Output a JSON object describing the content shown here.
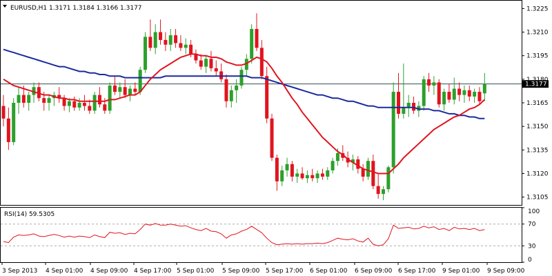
{
  "main_title": "EURUSD,H1  1.3171 1.3184 1.3166 1.3177",
  "rsi_title": "RSI(14) 59.5305",
  "current_price_label": "1.3177",
  "colors": {
    "bull": "#2ca02c",
    "bear": "#e0141e",
    "ma_fast": "#e0141e",
    "ma_slow": "#1a2a9c",
    "rsi": "#e0141e",
    "price_line": "#2f4f4f",
    "badge_bg": "#000000",
    "frame": "#000000",
    "level_line": "#aaaaaa"
  },
  "chart_data": [
    {
      "type": "candlestick",
      "title": "EURUSD,H1  1.3171 1.3184 1.3166 1.3177",
      "ylim": [
        1.31,
        1.323
      ],
      "y_ticks": [
        "1.3225",
        "1.3210",
        "1.3195",
        "1.3180",
        "1.3165",
        "1.3150",
        "1.3135",
        "1.3120",
        "1.3105"
      ],
      "last_price": 1.3177,
      "candles": [
        [
          1.3163,
          1.317,
          1.315,
          1.3155
        ],
        [
          1.3155,
          1.3162,
          1.3135,
          1.314
        ],
        [
          1.314,
          1.3168,
          1.3138,
          1.3165
        ],
        [
          1.3165,
          1.3175,
          1.3158,
          1.317
        ],
        [
          1.317,
          1.3176,
          1.3162,
          1.3165
        ],
        [
          1.3165,
          1.3172,
          1.316,
          1.317
        ],
        [
          1.317,
          1.3178,
          1.3165,
          1.3175
        ],
        [
          1.3175,
          1.3178,
          1.3166,
          1.3168
        ],
        [
          1.3168,
          1.3172,
          1.316,
          1.3165
        ],
        [
          1.3165,
          1.317,
          1.316,
          1.3168
        ],
        [
          1.3168,
          1.3172,
          1.3163,
          1.317
        ],
        [
          1.317,
          1.3175,
          1.3165,
          1.3168
        ],
        [
          1.3168,
          1.317,
          1.316,
          1.3163
        ],
        [
          1.3163,
          1.3168,
          1.3159,
          1.3166
        ],
        [
          1.3166,
          1.3169,
          1.316,
          1.3162
        ],
        [
          1.3162,
          1.3168,
          1.316,
          1.3165
        ],
        [
          1.3165,
          1.317,
          1.316,
          1.3163
        ],
        [
          1.3163,
          1.3167,
          1.3158,
          1.316
        ],
        [
          1.316,
          1.3172,
          1.3158,
          1.317
        ],
        [
          1.317,
          1.3175,
          1.3162,
          1.3164
        ],
        [
          1.3164,
          1.3168,
          1.3158,
          1.316
        ],
        [
          1.316,
          1.3178,
          1.3158,
          1.3176
        ],
        [
          1.3176,
          1.3182,
          1.317,
          1.3172
        ],
        [
          1.3172,
          1.3178,
          1.3168,
          1.3175
        ],
        [
          1.3175,
          1.318,
          1.3168,
          1.317
        ],
        [
          1.317,
          1.3176,
          1.3166,
          1.3174
        ],
        [
          1.3174,
          1.3178,
          1.317,
          1.3172
        ],
        [
          1.3172,
          1.3188,
          1.317,
          1.3186
        ],
        [
          1.3186,
          1.321,
          1.3184,
          1.3207
        ],
        [
          1.3207,
          1.3218,
          1.3198,
          1.32
        ],
        [
          1.32,
          1.3215,
          1.3196,
          1.321
        ],
        [
          1.321,
          1.3218,
          1.3202,
          1.3205
        ],
        [
          1.3205,
          1.321,
          1.3198,
          1.3202
        ],
        [
          1.3202,
          1.3212,
          1.3198,
          1.3208
        ],
        [
          1.3208,
          1.3212,
          1.32,
          1.3203
        ],
        [
          1.3203,
          1.3208,
          1.3198,
          1.32
        ],
        [
          1.32,
          1.3206,
          1.3196,
          1.3202
        ],
        [
          1.3202,
          1.3205,
          1.3194,
          1.3196
        ],
        [
          1.3196,
          1.3199,
          1.319,
          1.3192
        ],
        [
          1.3192,
          1.3196,
          1.3186,
          1.3188
        ],
        [
          1.3188,
          1.3195,
          1.3184,
          1.3193
        ],
        [
          1.3193,
          1.3198,
          1.3185,
          1.3187
        ],
        [
          1.3187,
          1.3192,
          1.3182,
          1.3185
        ],
        [
          1.3185,
          1.319,
          1.3178,
          1.318
        ],
        [
          1.318,
          1.3183,
          1.3162,
          1.3166
        ],
        [
          1.3166,
          1.3176,
          1.3162,
          1.3173
        ],
        [
          1.3173,
          1.318,
          1.3165,
          1.3176
        ],
        [
          1.3176,
          1.3188,
          1.3174,
          1.3186
        ],
        [
          1.3186,
          1.3196,
          1.3182,
          1.3193
        ],
        [
          1.3193,
          1.3215,
          1.319,
          1.3212
        ],
        [
          1.3212,
          1.3222,
          1.3198,
          1.32
        ],
        [
          1.32,
          1.3205,
          1.318,
          1.3182
        ],
        [
          1.3182,
          1.3188,
          1.3152,
          1.3155
        ],
        [
          1.3155,
          1.3158,
          1.3128,
          1.313
        ],
        [
          1.313,
          1.3132,
          1.3109,
          1.3115
        ],
        [
          1.3115,
          1.3125,
          1.3112,
          1.3122
        ],
        [
          1.3122,
          1.313,
          1.3118,
          1.3126
        ],
        [
          1.3126,
          1.3128,
          1.3115,
          1.3118
        ],
        [
          1.3118,
          1.3123,
          1.3114,
          1.312
        ],
        [
          1.312,
          1.3124,
          1.3116,
          1.3117
        ],
        [
          1.3117,
          1.3122,
          1.3114,
          1.3119
        ],
        [
          1.3119,
          1.3123,
          1.3115,
          1.3117
        ],
        [
          1.3117,
          1.3122,
          1.3114,
          1.312
        ],
        [
          1.312,
          1.3123,
          1.3116,
          1.3118
        ],
        [
          1.3118,
          1.3124,
          1.3116,
          1.3122
        ],
        [
          1.3122,
          1.313,
          1.312,
          1.3128
        ],
        [
          1.3128,
          1.3136,
          1.3125,
          1.3133
        ],
        [
          1.3133,
          1.3138,
          1.3128,
          1.313
        ],
        [
          1.313,
          1.3134,
          1.3124,
          1.3127
        ],
        [
          1.3127,
          1.3132,
          1.3122,
          1.3129
        ],
        [
          1.3129,
          1.3131,
          1.312,
          1.3123
        ],
        [
          1.3123,
          1.3126,
          1.3115,
          1.3118
        ],
        [
          1.3118,
          1.313,
          1.3116,
          1.3128
        ],
        [
          1.3128,
          1.3132,
          1.311,
          1.3112
        ],
        [
          1.3112,
          1.312,
          1.3104,
          1.3107
        ],
        [
          1.3107,
          1.3112,
          1.3103,
          1.311
        ],
        [
          1.311,
          1.3125,
          1.3108,
          1.3124
        ],
        [
          1.3124,
          1.3178,
          1.312,
          1.3172
        ],
        [
          1.3172,
          1.3184,
          1.3155,
          1.3158
        ],
        [
          1.3158,
          1.319,
          1.3155,
          1.3162
        ],
        [
          1.3162,
          1.317,
          1.3156,
          1.3165
        ],
        [
          1.3165,
          1.3169,
          1.3158,
          1.316
        ],
        [
          1.316,
          1.3166,
          1.3156,
          1.3163
        ],
        [
          1.3163,
          1.3182,
          1.316,
          1.318
        ],
        [
          1.318,
          1.3184,
          1.3172,
          1.3176
        ],
        [
          1.3176,
          1.3182,
          1.317,
          1.3178
        ],
        [
          1.3178,
          1.318,
          1.3162,
          1.3164
        ],
        [
          1.3164,
          1.3174,
          1.316,
          1.3172
        ],
        [
          1.3172,
          1.3177,
          1.3165,
          1.3167
        ],
        [
          1.3167,
          1.3181,
          1.3164,
          1.3174
        ],
        [
          1.3174,
          1.3178,
          1.3166,
          1.317
        ],
        [
          1.317,
          1.3176,
          1.3165,
          1.3173
        ],
        [
          1.3173,
          1.3176,
          1.3166,
          1.3169
        ],
        [
          1.3169,
          1.3174,
          1.3165,
          1.3172
        ],
        [
          1.3172,
          1.3175,
          1.3164,
          1.3166
        ],
        [
          1.3171,
          1.3184,
          1.3166,
          1.3177
        ]
      ],
      "series": [
        {
          "values": [
            1.318,
            1.3178,
            1.3176,
            1.3175,
            1.3174,
            1.3173,
            1.3172,
            1.3171,
            1.317,
            1.317,
            1.3169,
            1.3168,
            1.3168,
            1.3167,
            1.3167,
            1.3166,
            1.3166,
            1.3166,
            1.3166,
            1.3166,
            1.3166,
            1.3167,
            1.3167,
            1.3168,
            1.3169,
            1.317,
            1.317,
            1.3172,
            1.3176,
            1.318,
            1.3183,
            1.3186,
            1.3188,
            1.319,
            1.3192,
            1.3194,
            1.3195,
            1.3196,
            1.3196,
            1.3195,
            1.3195,
            1.3194,
            1.3194,
            1.3193,
            1.3191,
            1.319,
            1.3189,
            1.3189,
            1.319,
            1.3192,
            1.3194,
            1.3193,
            1.3191,
            1.3187,
            1.3182,
            1.3178,
            1.3173,
            1.3168,
            1.3164,
            1.3159,
            1.3155,
            1.3151,
            1.3147,
            1.3143,
            1.314,
            1.3137,
            1.3134,
            1.3132,
            1.3129,
            1.3127,
            1.3125,
            1.3123,
            1.3122,
            1.3121,
            1.312,
            1.312,
            1.312,
            1.3123,
            1.3126,
            1.313,
            1.3133,
            1.3136,
            1.3139,
            1.3142,
            1.3145,
            1.3148,
            1.315,
            1.3152,
            1.3154,
            1.3156,
            1.3157,
            1.3159,
            1.3161,
            1.3162,
            1.3164,
            1.3167
          ]
        },
        {
          "values": [
            1.3199,
            1.3198,
            1.3197,
            1.3196,
            1.3195,
            1.3194,
            1.3193,
            1.3192,
            1.3191,
            1.319,
            1.3189,
            1.3188,
            1.3188,
            1.3187,
            1.3186,
            1.3185,
            1.3185,
            1.3184,
            1.3184,
            1.3183,
            1.3183,
            1.3182,
            1.3182,
            1.3182,
            1.3181,
            1.3181,
            1.3181,
            1.3181,
            1.3181,
            1.3181,
            1.3181,
            1.3181,
            1.3182,
            1.3182,
            1.3182,
            1.3182,
            1.3182,
            1.3182,
            1.3182,
            1.3182,
            1.3182,
            1.3182,
            1.3182,
            1.3182,
            1.3182,
            1.3182,
            1.3182,
            1.3182,
            1.3182,
            1.3181,
            1.3181,
            1.3181,
            1.318,
            1.3179,
            1.3178,
            1.3177,
            1.3176,
            1.3175,
            1.3174,
            1.3173,
            1.3172,
            1.3171,
            1.317,
            1.317,
            1.3169,
            1.3168,
            1.3168,
            1.3167,
            1.3166,
            1.3166,
            1.3165,
            1.3164,
            1.3163,
            1.3163,
            1.3162,
            1.3162,
            1.3162,
            1.3162,
            1.3162,
            1.3162,
            1.3162,
            1.3162,
            1.3161,
            1.3161,
            1.3161,
            1.316,
            1.316,
            1.3159,
            1.3158,
            1.3158,
            1.3157,
            1.3157,
            1.3156,
            1.3156,
            1.3155,
            1.3155
          ]
        }
      ]
    },
    {
      "type": "line",
      "title": "RSI(14) 59.5305",
      "ylim": [
        0,
        100
      ],
      "y_ticks": [
        "100",
        "70",
        "30",
        "0"
      ],
      "levels": [
        70,
        30
      ],
      "x_labels": [
        "3 Sep 2013",
        "4 Sep 01:00",
        "4 Sep 09:00",
        "4 Sep 17:00",
        "5 Sep 01:00",
        "5 Sep 09:00",
        "5 Sep 17:00",
        "6 Sep 01:00",
        "6 Sep 09:00",
        "6 Sep 17:00",
        "9 Sep 01:00",
        "9 Sep 09:00"
      ],
      "series": [
        {
          "values": [
            38,
            36,
            46,
            50,
            49,
            50,
            52,
            48,
            47,
            49,
            51,
            49,
            46,
            48,
            46,
            48,
            47,
            45,
            50,
            47,
            45,
            55,
            53,
            54,
            51,
            53,
            52,
            60,
            70,
            68,
            71,
            68,
            68,
            70,
            68,
            66,
            67,
            63,
            60,
            58,
            62,
            57,
            56,
            52,
            44,
            50,
            52,
            57,
            60,
            66,
            60,
            54,
            44,
            36,
            32,
            33,
            34,
            33,
            34,
            33,
            34,
            34,
            35,
            34,
            36,
            40,
            44,
            42,
            41,
            43,
            39,
            37,
            44,
            33,
            30,
            32,
            43,
            68,
            62,
            63,
            64,
            61,
            62,
            66,
            63,
            65,
            60,
            62,
            58,
            64,
            61,
            62,
            60,
            62,
            58,
            60
          ]
        }
      ]
    }
  ]
}
